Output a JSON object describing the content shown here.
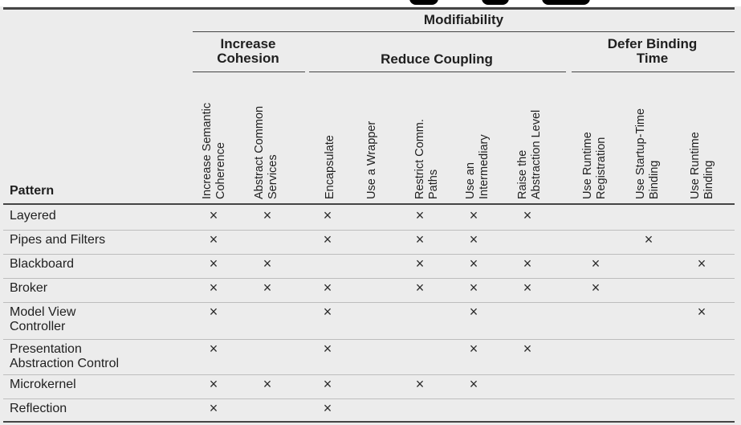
{
  "title_band": "Modifiability",
  "groups": [
    {
      "label_line1": "Increase",
      "label_line2": "Cohesion"
    },
    {
      "label_line1": "Reduce Coupling",
      "label_line2": ""
    },
    {
      "label_line1": "Defer Binding",
      "label_line2": "Time"
    }
  ],
  "columns": [
    [
      "Increase Semantic",
      "Coherence"
    ],
    [
      "Abstract Common",
      "Services"
    ],
    [
      "Encapsulate",
      ""
    ],
    [
      "Use a Wrapper",
      ""
    ],
    [
      "Restrict Comm.",
      "Paths"
    ],
    [
      "Use an",
      "Intermediary"
    ],
    [
      "Raise the",
      "Abstraction Level"
    ],
    [
      "Use Runtime",
      "Registration"
    ],
    [
      "Use Startup-Time",
      "Binding"
    ],
    [
      "Use Runtime",
      "Binding"
    ]
  ],
  "pattern_header": "Pattern",
  "mark": "×",
  "rows": [
    {
      "label": [
        "Layered"
      ],
      "marks": [
        1,
        1,
        1,
        0,
        1,
        1,
        1,
        0,
        0,
        0
      ]
    },
    {
      "label": [
        "Pipes and Filters"
      ],
      "marks": [
        1,
        0,
        1,
        0,
        1,
        1,
        0,
        0,
        1,
        0
      ]
    },
    {
      "label": [
        "Blackboard"
      ],
      "marks": [
        1,
        1,
        0,
        0,
        1,
        1,
        1,
        1,
        0,
        1
      ]
    },
    {
      "label": [
        "Broker"
      ],
      "marks": [
        1,
        1,
        1,
        0,
        1,
        1,
        1,
        1,
        0,
        0
      ]
    },
    {
      "label": [
        "Model View",
        "Controller"
      ],
      "marks": [
        1,
        0,
        1,
        0,
        0,
        1,
        0,
        0,
        0,
        1
      ]
    },
    {
      "label": [
        "Presentation",
        "Abstraction Control"
      ],
      "marks": [
        1,
        0,
        1,
        0,
        0,
        1,
        1,
        0,
        0,
        0
      ]
    },
    {
      "label": [
        "Microkernel"
      ],
      "marks": [
        1,
        1,
        1,
        0,
        1,
        1,
        0,
        0,
        0,
        0
      ]
    },
    {
      "label": [
        "Reflection"
      ],
      "marks": [
        1,
        0,
        1,
        0,
        0,
        0,
        0,
        0,
        0,
        0
      ]
    }
  ]
}
